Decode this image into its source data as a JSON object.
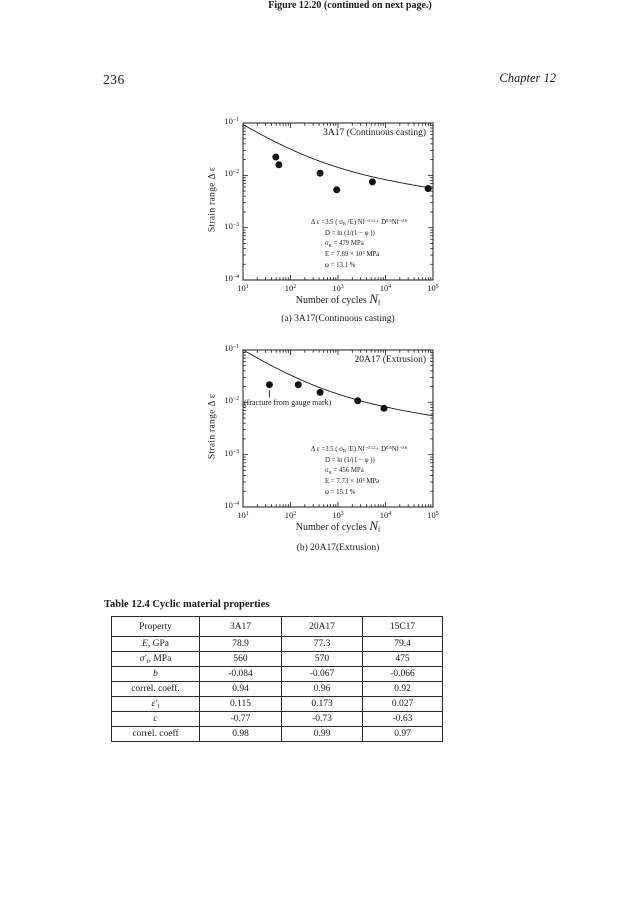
{
  "page": {
    "number": "236",
    "chapter": "Chapter 12"
  },
  "figure": {
    "caption": "Figure 12.20 (continued on next page.)"
  },
  "chart_data": [
    {
      "type": "scatter",
      "id": "a",
      "title": "3A17 (Continuous casting)",
      "caption": "(a) 3A17(Continuous casting)",
      "xlabel": "Number of cycles  *N*_{f}",
      "ylabel": "Strain range    Δ ε",
      "xscale": "log",
      "yscale": "log",
      "xlim": [
        10,
        100000
      ],
      "ylim": [
        0.0001,
        0.1
      ],
      "x_tick_exponents": [
        1,
        2,
        3,
        4,
        5
      ],
      "y_tick_exponents": [
        -1,
        -2,
        -3,
        -4
      ],
      "points": [
        [
          49,
          0.0224
        ],
        [
          57,
          0.0159
        ],
        [
          420,
          0.011
        ],
        [
          940,
          0.0053
        ],
        [
          5300,
          0.0075
        ],
        [
          79000,
          0.0056
        ]
      ],
      "curve_params": {
        "sigma_B_MPa": 479,
        "E_MPa": 78900,
        "phi": 0.131
      },
      "equation_lines": [
        "Δ ε =3.5 ( σ_{B} /E) Nf^{−0.12}+ D^{0.6}Nf^{−0.6}",
        "D = ln (1/(1 − φ ))",
        "σ_{B} = 479 MPa",
        "E = 7.89 × 10^{4} MPa",
        "φ  = 13.1 %"
      ],
      "annotation": null
    },
    {
      "type": "scatter",
      "id": "b",
      "title": "20A17 (Extrusion)",
      "caption": "(b) 20A17(Extrusion)",
      "xlabel": "Number of cycles  *N*_{f}",
      "ylabel": "Strain range    Δ ε",
      "xscale": "log",
      "yscale": "log",
      "xlim": [
        10,
        100000
      ],
      "ylim": [
        0.0001,
        0.1
      ],
      "x_tick_exponents": [
        1,
        2,
        3,
        4,
        5
      ],
      "y_tick_exponents": [
        -1,
        -2,
        -3,
        -4
      ],
      "points": [
        [
          36,
          0.0217
        ],
        [
          146,
          0.0217
        ],
        [
          420,
          0.0155
        ],
        [
          2600,
          0.0107
        ],
        [
          9300,
          0.0077
        ]
      ],
      "curve_params": {
        "sigma_B_MPa": 456,
        "E_MPa": 77300,
        "phi": 0.151
      },
      "equation_lines": [
        "Δ ε =3.5 ( σ_{B} /E) Nf^{−0.12}+ D^{0.6}Nf^{−0.6}",
        "D = ln (1/(1 − φ ))",
        "σ_{B} = 456 MPa",
        "E = 7.73 × 10^{4} MPa",
        "φ  = 15.1 %"
      ],
      "annotation": {
        "text": "(fracture from gauge mark)",
        "point_index": 0
      }
    }
  ],
  "table": {
    "title": "Table 12.4  Cyclic material properties",
    "columns": [
      "Property",
      "3A17",
      "20A17",
      "15C17"
    ],
    "rows": [
      [
        "*E*, GPa",
        "78.9",
        "77.3",
        "79.4"
      ],
      [
        "*σ′*_{f}, MPa",
        "560",
        "570",
        "475"
      ],
      [
        "*b*",
        "-0.084",
        "-0.067",
        "-0.066"
      ],
      [
        "correl. coeff.",
        "0.94",
        "0.96",
        "0.92"
      ],
      [
        "*ε′*_{f}",
        "0.115",
        "0.173",
        "0.027"
      ],
      [
        "*c*",
        "-0.77",
        "-0.73",
        "-0.63"
      ],
      [
        "correl. coeff",
        "0.98",
        "0.99",
        "0.97"
      ]
    ]
  }
}
